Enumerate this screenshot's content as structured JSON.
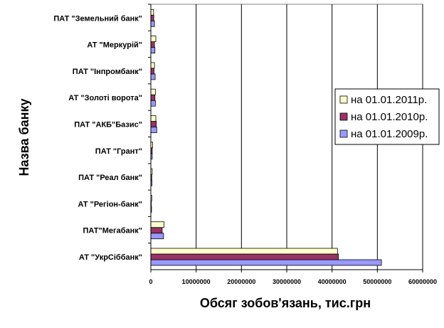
{
  "chart_data": {
    "type": "bar",
    "orientation": "horizontal",
    "xlabel": "Обсяг зобов'язань, тис.грн",
    "ylabel": "Назва банку",
    "xlim": [
      0,
      60000000
    ],
    "xticks": [
      0,
      10000000,
      20000000,
      30000000,
      40000000,
      50000000,
      60000000
    ],
    "xtick_labels": [
      "0",
      "10000000",
      "20000000",
      "30000000",
      "40000000",
      "50000000",
      "60000000"
    ],
    "grid": "vertical",
    "legend_position": "right",
    "categories": [
      "АТ \"УкрСіббанк\"",
      "ПАТ\"Мегабанк\"",
      "АТ \"Регіон-банк\"",
      "ПАТ \"Реал банк\"",
      "ПАТ \"Грант\"",
      "ПАТ \"АКБ\"Базис\"",
      "АТ \"Золоті ворота\"",
      "ПАТ \"Інпромбанк\"",
      "АТ \"Меркурій\"",
      "ПАТ \"Земельний банк\""
    ],
    "series": [
      {
        "name": "на 01.01.2011р.",
        "color": "#FFFFCC",
        "values": [
          41200000,
          2900000,
          200000,
          300000,
          400000,
          1100000,
          1000000,
          800000,
          1100000,
          600000
        ]
      },
      {
        "name": "на 01.01.2010р.",
        "color": "#993366",
        "values": [
          41400000,
          2500000,
          100000,
          200000,
          300000,
          1200000,
          900000,
          700000,
          800000,
          650000
        ]
      },
      {
        "name": "на 01.01.2009р.",
        "color": "#9999FF",
        "values": [
          50900000,
          2800000,
          150000,
          250000,
          300000,
          1300000,
          1000000,
          950000,
          900000,
          800000
        ]
      }
    ]
  }
}
